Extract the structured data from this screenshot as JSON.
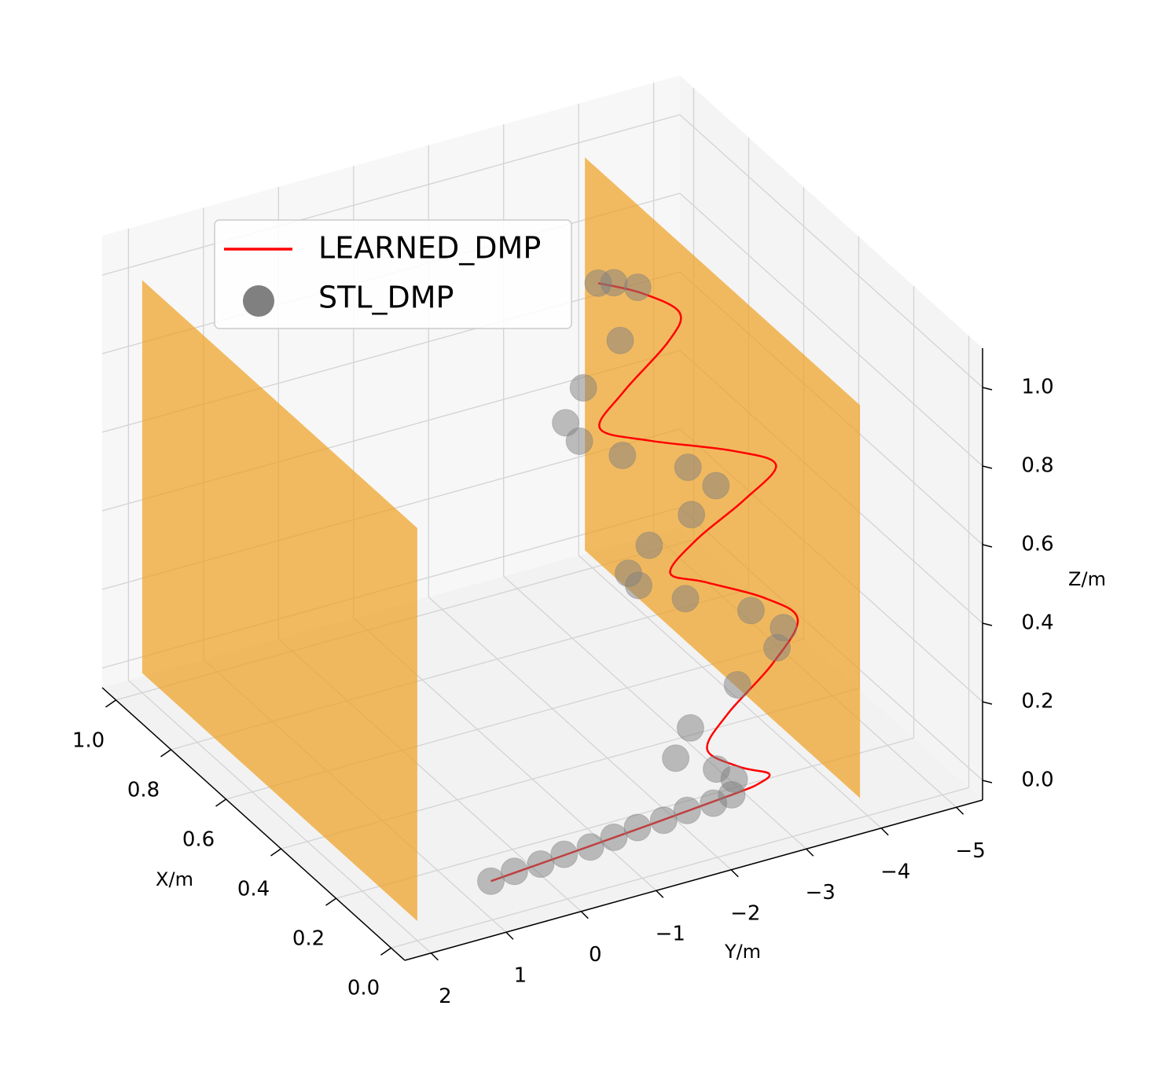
{
  "chart_data": {
    "type": "scatter3d",
    "xlabel": "X/m",
    "ylabel": "Y/m",
    "zlabel": "Z/m",
    "xlim": [
      -0.05,
      1.05
    ],
    "ylim": [
      2.35,
      -5.35
    ],
    "zlim": [
      -0.05,
      1.1
    ],
    "xticks": [
      {
        "value": 0,
        "label": "0.0"
      },
      {
        "value": 0.2,
        "label": "0.2"
      },
      {
        "value": 0.4,
        "label": "0.4"
      },
      {
        "value": 0.6,
        "label": "0.6"
      },
      {
        "value": 0.8,
        "label": "0.8"
      },
      {
        "value": 1,
        "label": "1.0"
      }
    ],
    "yticks": [
      {
        "value": 2,
        "label": "2"
      },
      {
        "value": 1,
        "label": "1"
      },
      {
        "value": 0,
        "label": "0"
      },
      {
        "value": -1,
        "label": "−1"
      },
      {
        "value": -2,
        "label": "−2"
      },
      {
        "value": -3,
        "label": "−3"
      },
      {
        "value": -4,
        "label": "−4"
      },
      {
        "value": -5,
        "label": "−5"
      }
    ],
    "zticks": [
      {
        "value": 0,
        "label": "0.0"
      },
      {
        "value": 0.2,
        "label": "0.2"
      },
      {
        "value": 0.4,
        "label": "0.4"
      },
      {
        "value": 0.6,
        "label": "0.6"
      },
      {
        "value": 0.8,
        "label": "0.8"
      },
      {
        "value": 1,
        "label": "1.0"
      }
    ],
    "grid": true,
    "legend": "upper left",
    "planes": [
      {
        "y": 2.0,
        "xrange": [
          0,
          1
        ],
        "zrange": [
          0,
          1
        ],
        "color": "#f0a020",
        "alpha": 0.7
      },
      {
        "y": -3.9,
        "xrange": [
          0,
          1
        ],
        "zrange": [
          0,
          1
        ],
        "color": "#f0a020",
        "alpha": 0.7
      }
    ],
    "series": [
      {
        "name": "LEARNED_DMP",
        "type": "line",
        "color": "#ff0000",
        "x": [
          0.06,
          0.09,
          0.12,
          0.12,
          0.13,
          0.14,
          0.16,
          0.18,
          0.21,
          0.24,
          0.26,
          0.29,
          0.3,
          0.32,
          0.34,
          0.36,
          0.38,
          0.41,
          0.43,
          0.45,
          0.48,
          0.5,
          0.52,
          0.54
        ],
        "y": [
          0.8,
          -1.0,
          -2.63,
          -3.0,
          -3.16,
          -2.8,
          -2.45,
          -2.8,
          -3.5,
          -3.95,
          -3.6,
          -2.9,
          -2.47,
          -2.9,
          -3.6,
          -4.1,
          -3.6,
          -2.6,
          -2.01,
          -2.4,
          -3.1,
          -3.33,
          -2.9,
          -2.39
        ],
        "z": [
          0,
          0,
          0,
          0.01,
          0.02,
          0.05,
          0.1,
          0.16,
          0.23,
          0.3,
          0.36,
          0.42,
          0.46,
          0.51,
          0.56,
          0.61,
          0.66,
          0.72,
          0.77,
          0.83,
          0.9,
          0.95,
          1.01,
          1.05
        ]
      },
      {
        "name": "STL_DMP",
        "type": "scatter",
        "color": "#808080",
        "x": [
          0.06,
          0.07,
          0.07,
          0.08,
          0.08,
          0.09,
          0.1,
          0.1,
          0.11,
          0.11,
          0.12,
          0.13,
          0.14,
          0.16,
          0.18,
          0.2,
          0.22,
          0.24,
          0.26,
          0.28,
          0.3,
          0.31,
          0.33,
          0.34,
          0.36,
          0.38,
          0.4,
          0.42,
          0.44,
          0.46,
          0.49,
          0.53,
          0.54,
          0.54
        ],
        "y": [
          0.8,
          0.45,
          0.1,
          -0.25,
          -0.6,
          -0.95,
          -1.3,
          -1.65,
          -2.0,
          -2.35,
          -2.63,
          -2.7,
          -2.5,
          -2.03,
          -2.3,
          -3.0,
          -3.6,
          -3.76,
          -3.4,
          -2.6,
          -2.05,
          -1.95,
          -2.3,
          -2.9,
          -3.3,
          -3.0,
          -2.2,
          -1.7,
          -1.59,
          -1.9,
          -2.5,
          -2.88,
          -2.6,
          -2.39
        ],
        "z": [
          0,
          0,
          0,
          0,
          0,
          0,
          0,
          0,
          0,
          0,
          0,
          0.03,
          0.06,
          0.1,
          0.15,
          0.21,
          0.26,
          0.29,
          0.34,
          0.4,
          0.45,
          0.48,
          0.52,
          0.56,
          0.6,
          0.65,
          0.71,
          0.76,
          0.8,
          0.86,
          0.93,
          1.02,
          1.04,
          1.05
        ]
      }
    ]
  }
}
